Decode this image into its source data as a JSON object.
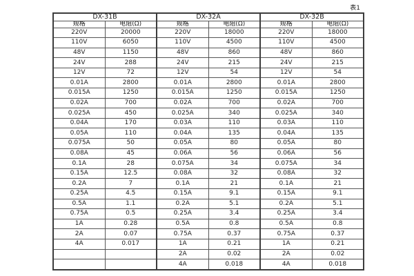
{
  "page": {
    "caption": "表1"
  },
  "table": {
    "groups": [
      {
        "name": "DX-31B",
        "spec_header": "规格",
        "res_header": "电阻(Ω)",
        "rows": [
          [
            "220V",
            "20000"
          ],
          [
            "110V",
            "6050"
          ],
          [
            "48V",
            "1150"
          ],
          [
            "24V",
            "288"
          ],
          [
            "12V",
            "72"
          ],
          [
            "0.01A",
            "2800"
          ],
          [
            "0.015A",
            "1250"
          ],
          [
            "0.02A",
            "700"
          ],
          [
            "0.025A",
            "450"
          ],
          [
            "0.04A",
            "170"
          ],
          [
            "0.05A",
            "110"
          ],
          [
            "0.075A",
            "50"
          ],
          [
            "0.08A",
            "45"
          ],
          [
            "0.1A",
            "28"
          ],
          [
            "0.15A",
            "12.5"
          ],
          [
            "0.2A",
            "7"
          ],
          [
            "0.25A",
            "4.5"
          ],
          [
            "0.5A",
            "1.1"
          ],
          [
            "0.75A",
            "0.5"
          ],
          [
            "1A",
            "0.28"
          ],
          [
            "2A",
            "0.07"
          ],
          [
            "4A",
            "0.017"
          ],
          [
            "",
            ""
          ],
          [
            "",
            ""
          ]
        ]
      },
      {
        "name": "DX-32A",
        "spec_header": "规格",
        "res_header": "电阻(Ω)",
        "rows": [
          [
            "220V",
            "18000"
          ],
          [
            "110V",
            "4500"
          ],
          [
            "48V",
            "860"
          ],
          [
            "24V",
            "215"
          ],
          [
            "12V",
            "54"
          ],
          [
            "0.01A",
            "2800"
          ],
          [
            "0.015A",
            "1250"
          ],
          [
            "0.02A",
            "700"
          ],
          [
            "0.025A",
            "340"
          ],
          [
            "0.03A",
            "110"
          ],
          [
            "0.04A",
            "135"
          ],
          [
            "0.05A",
            "80"
          ],
          [
            "0.06A",
            "56"
          ],
          [
            "0.075A",
            "34"
          ],
          [
            "0.08A",
            "32"
          ],
          [
            "0.1A",
            "21"
          ],
          [
            "0.15A",
            "9.1"
          ],
          [
            "0.2A",
            "5.1"
          ],
          [
            "0.25A",
            "3.4"
          ],
          [
            "0.5A",
            "0.8"
          ],
          [
            "0.75A",
            "0.37"
          ],
          [
            "1A",
            "0.21"
          ],
          [
            "2A",
            "0.02"
          ],
          [
            "4A",
            "0.018"
          ]
        ]
      },
      {
        "name": "DX-32B",
        "spec_header": "规格",
        "res_header": "电阻(Ω)",
        "rows": [
          [
            "220V",
            "18000"
          ],
          [
            "110V",
            "4500"
          ],
          [
            "48V",
            "860"
          ],
          [
            "24V",
            "215"
          ],
          [
            "12V",
            "54"
          ],
          [
            "0.01A",
            "2800"
          ],
          [
            "0.015A",
            "1250"
          ],
          [
            "0.02A",
            "700"
          ],
          [
            "0.025A",
            "340"
          ],
          [
            "0.03A",
            "110"
          ],
          [
            "0.04A",
            "135"
          ],
          [
            "0.05A",
            "80"
          ],
          [
            "0.06A",
            "56"
          ],
          [
            "0.075A",
            "34"
          ],
          [
            "0.08A",
            "32"
          ],
          [
            "0.1A",
            "21"
          ],
          [
            "0.15A",
            "9.1"
          ],
          [
            "0.2A",
            "5.1"
          ],
          [
            "0.25A",
            "3.4"
          ],
          [
            "0.5A",
            "0.8"
          ],
          [
            "0.75A",
            "0.37"
          ],
          [
            "1A",
            "0.21"
          ],
          [
            "2A",
            "0.02"
          ],
          [
            "4A",
            "0.018"
          ]
        ]
      }
    ]
  }
}
